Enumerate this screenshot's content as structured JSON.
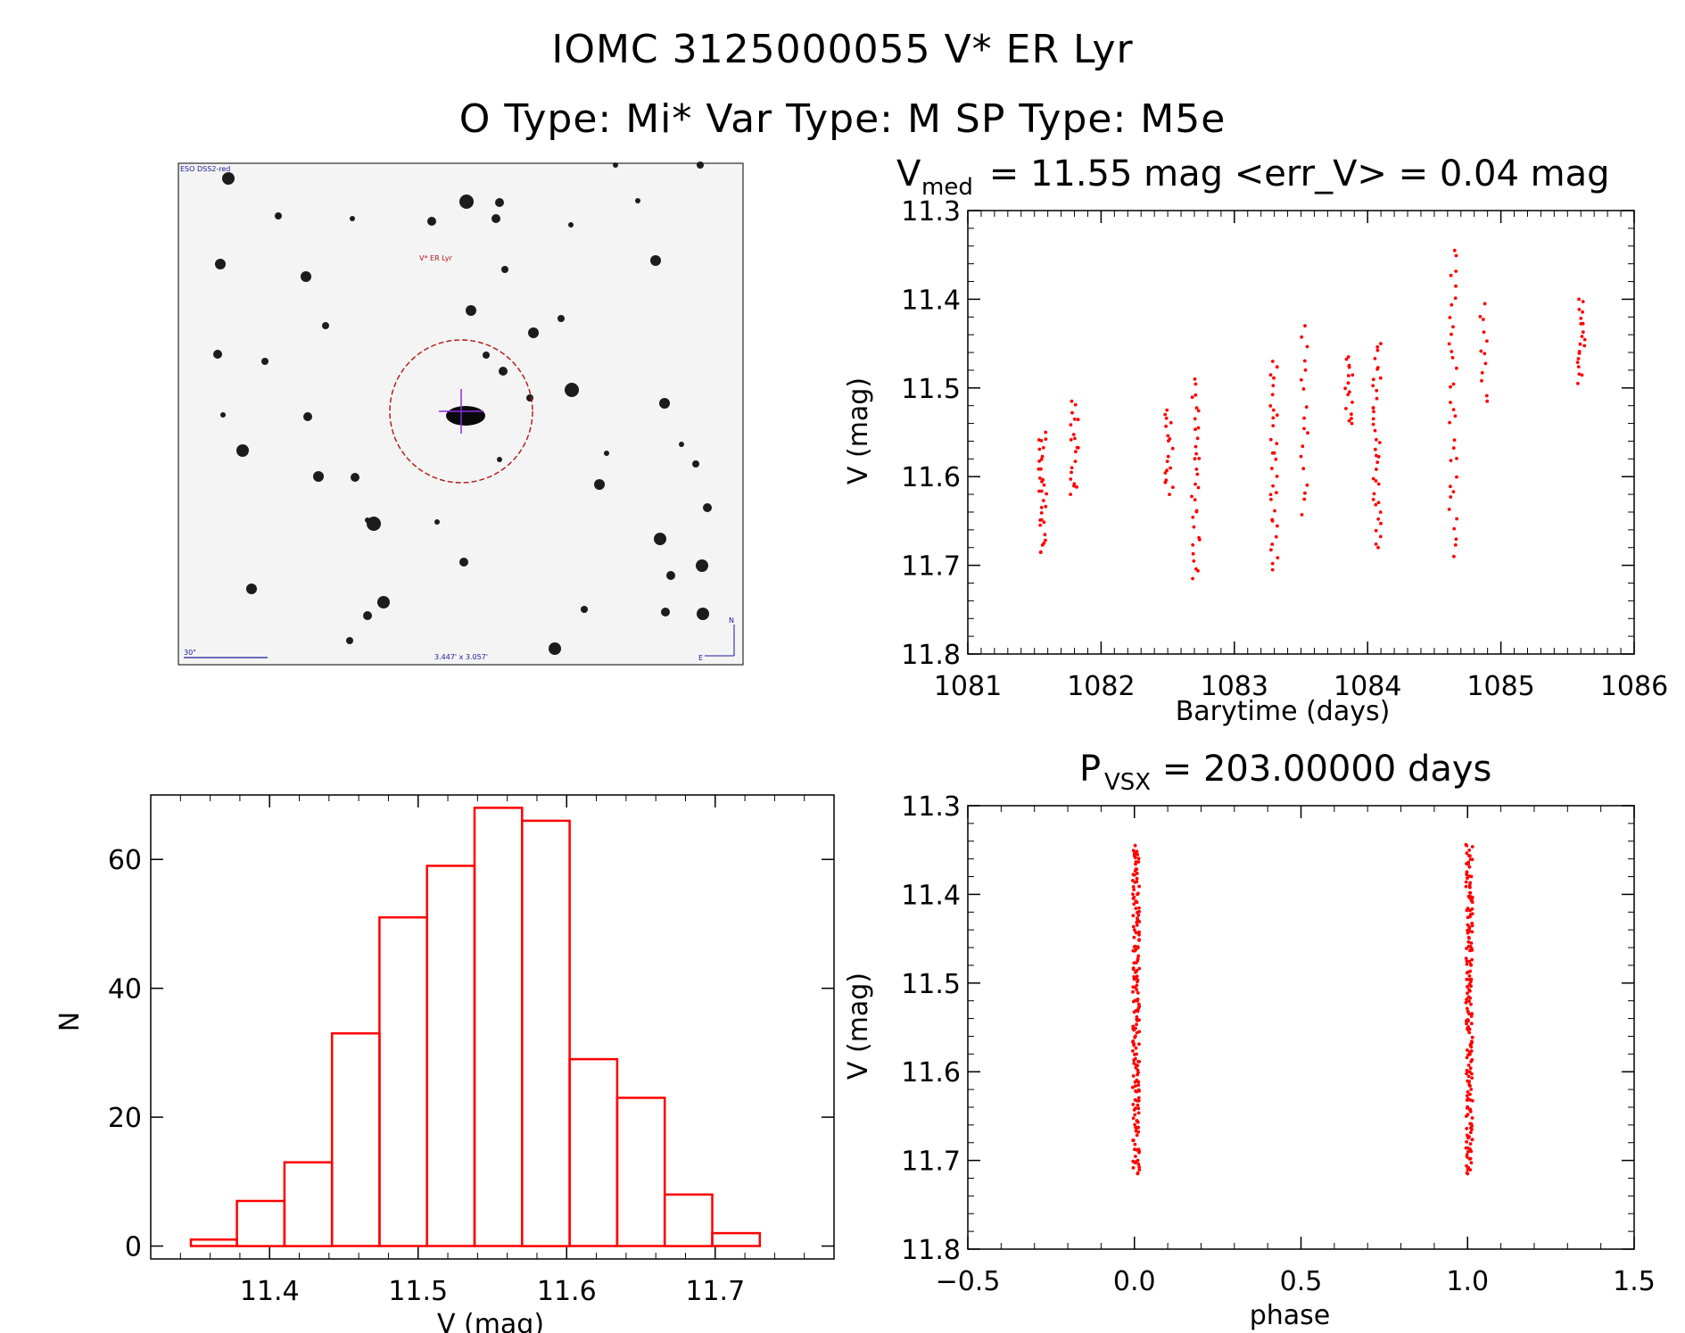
{
  "header": {
    "line1": "IOMC 3125000055   V* ER Lyr",
    "line2": "O Type: Mi*  Var Type: M  SP Type: M5e"
  },
  "finder": {
    "survey_label": "ESO DSS2-red",
    "target_label": "V* ER Lyr",
    "scale_label": "30\"",
    "fov_label": "3.447' x 3.057'",
    "north_label": "N",
    "east_label": "E"
  },
  "chart_data": [
    {
      "id": "lightcurve",
      "type": "scatter",
      "title_main": "V",
      "title_sub": "med",
      "title_rest": " = 11.55 mag <err_V> = 0.04 mag",
      "xlabel": "Barytime (days)",
      "ylabel": "V (mag)",
      "xlim": [
        1081,
        1086
      ],
      "ylim": [
        11.3,
        11.8
      ],
      "y_inverted": true,
      "xticks": [
        "1081",
        "1082",
        "1083",
        "1084",
        "1085",
        "1086"
      ],
      "yticks": [
        "11.3",
        "11.4",
        "11.5",
        "11.6",
        "11.7",
        "11.8"
      ],
      "color": "#ff0000",
      "groups": [
        {
          "x": 1081.56,
          "ymin": 11.55,
          "ymax": 11.685,
          "n": 32
        },
        {
          "x": 1081.8,
          "ymin": 11.515,
          "ymax": 11.62,
          "n": 20
        },
        {
          "x": 1082.51,
          "ymin": 11.525,
          "ymax": 11.62,
          "n": 18
        },
        {
          "x": 1082.71,
          "ymin": 11.49,
          "ymax": 11.715,
          "n": 32
        },
        {
          "x": 1083.3,
          "ymin": 11.47,
          "ymax": 11.705,
          "n": 32
        },
        {
          "x": 1083.53,
          "ymin": 11.43,
          "ymax": 11.643,
          "n": 18
        },
        {
          "x": 1083.86,
          "ymin": 11.465,
          "ymax": 11.54,
          "n": 16
        },
        {
          "x": 1084.07,
          "ymin": 11.45,
          "ymax": 11.68,
          "n": 38
        },
        {
          "x": 1084.64,
          "ymin": 11.345,
          "ymax": 11.69,
          "n": 34
        },
        {
          "x": 1084.87,
          "ymin": 11.405,
          "ymax": 11.515,
          "n": 12
        },
        {
          "x": 1085.6,
          "ymin": 11.4,
          "ymax": 11.495,
          "n": 20
        }
      ]
    },
    {
      "id": "phased",
      "type": "scatter",
      "title_main": "P",
      "title_sub": "VSX",
      "title_rest": " = 203.00000 days",
      "xlabel": "phase",
      "ylabel": "V (mag)",
      "xlim": [
        -0.5,
        1.5
      ],
      "ylim": [
        11.3,
        11.8
      ],
      "y_inverted": true,
      "xticks": [
        "−0.5",
        "0.0",
        "0.5",
        "1.0",
        "1.5"
      ],
      "yticks": [
        "11.3",
        "11.4",
        "11.5",
        "11.6",
        "11.7",
        "11.8"
      ],
      "color": "#ff0000",
      "groups": [
        {
          "x": 0.005,
          "ymin": 11.345,
          "ymax": 11.715,
          "n": 180
        },
        {
          "x": 1.005,
          "ymin": 11.345,
          "ymax": 11.715,
          "n": 180
        }
      ]
    },
    {
      "id": "histogram",
      "type": "bar",
      "xlabel": "V (mag)",
      "ylabel": "N",
      "xlim": [
        11.32,
        11.78
      ],
      "ylim": [
        -2,
        70
      ],
      "xticks": [
        "11.4",
        "11.5",
        "11.6",
        "11.7"
      ],
      "yticks": [
        "0",
        "20",
        "40",
        "60"
      ],
      "bin_edges": [
        11.347,
        11.378,
        11.41,
        11.442,
        11.474,
        11.506,
        11.538,
        11.57,
        11.602,
        11.634,
        11.666,
        11.698,
        11.73
      ],
      "values": [
        1,
        7,
        13,
        33,
        51,
        59,
        68,
        66,
        29,
        23,
        8,
        2
      ],
      "color": "#ff0000"
    }
  ]
}
